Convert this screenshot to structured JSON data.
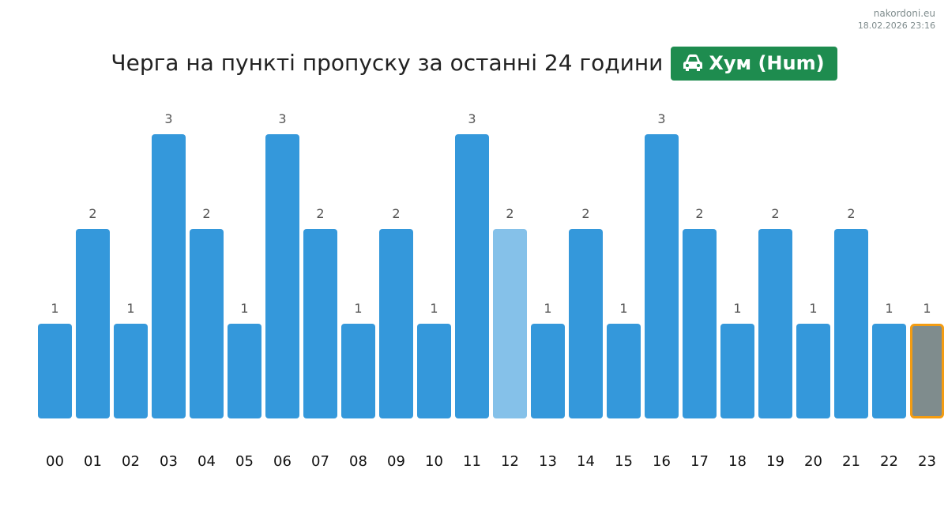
{
  "site": {
    "name": "nakordoni.eu",
    "timestamp": "18.02.2026 23:16"
  },
  "header": {
    "title": "Черга на пункті пропуску за останні 24 години",
    "badge_label": "Хум (Hum)",
    "badge_icon": "car-icon",
    "badge_color": "#1e8c4f"
  },
  "chart_data": {
    "type": "bar",
    "categories": [
      "00",
      "01",
      "02",
      "03",
      "04",
      "05",
      "06",
      "07",
      "08",
      "09",
      "10",
      "11",
      "12",
      "13",
      "14",
      "15",
      "16",
      "17",
      "18",
      "19",
      "20",
      "21",
      "22",
      "23"
    ],
    "values": [
      1,
      2,
      1,
      3,
      2,
      1,
      3,
      2,
      1,
      2,
      1,
      3,
      2,
      1,
      2,
      1,
      3,
      2,
      1,
      2,
      1,
      2,
      1,
      1
    ],
    "title": "Черга на пункті пропуску за останні 24 години",
    "xlabel": "",
    "ylabel": "",
    "ylim": [
      0,
      3
    ],
    "grid": false,
    "legend": "none",
    "bar_color": "#3498db",
    "highlighted_light": {
      "category": "12",
      "color": "#85c1e9"
    },
    "current_hour": {
      "category": "23",
      "color": "#7f8c8d",
      "border_color": "#f39c12"
    }
  }
}
